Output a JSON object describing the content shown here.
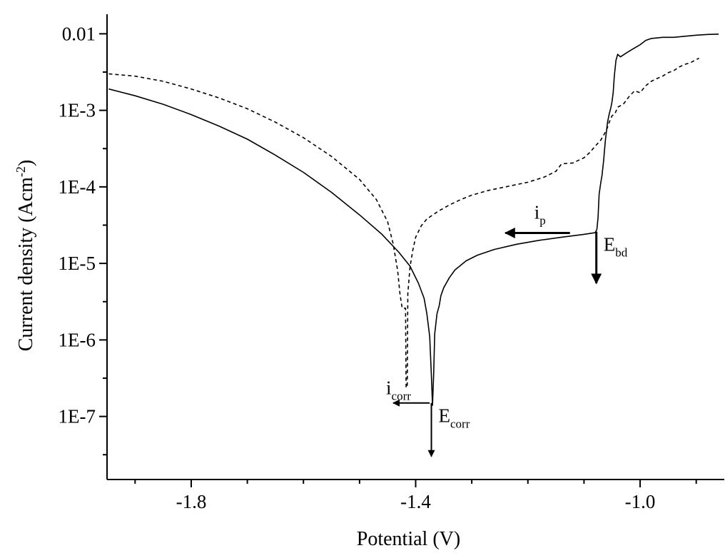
{
  "chart_data": {
    "type": "line",
    "title": "",
    "xlabel": "Potential (V)",
    "ylabel": {
      "main": "Current density (Acm",
      "sup": "-2",
      "close": ")"
    },
    "xlim": [
      -1.95,
      -0.85
    ],
    "ylim": [
      1.5e-08,
      0.018
    ],
    "y_scale": "log",
    "grid": false,
    "x_ticks": [
      {
        "value": -1.8,
        "label": "-1.8"
      },
      {
        "value": -1.4,
        "label": "-1.4"
      },
      {
        "value": -1.0,
        "label": "-1.0"
      }
    ],
    "y_ticks": [
      {
        "value": 1e-07,
        "label": "1E-7"
      },
      {
        "value": 1e-06,
        "label": "1E-6"
      },
      {
        "value": 1e-05,
        "label": "1E-5"
      },
      {
        "value": 0.0001,
        "label": "1E-4"
      },
      {
        "value": 0.001,
        "label": "1E-3"
      },
      {
        "value": 0.01,
        "label": "0.01"
      }
    ],
    "series": [
      {
        "style": "solid",
        "color": "#000000",
        "points": [
          [
            -1.947,
            0.0019
          ],
          [
            -1.9,
            0.00155
          ],
          [
            -1.85,
            0.0012
          ],
          [
            -1.8,
            0.00088
          ],
          [
            -1.75,
            0.00062
          ],
          [
            -1.7,
            0.00042
          ],
          [
            -1.65,
            0.00026
          ],
          [
            -1.6,
            0.000155
          ],
          [
            -1.55,
            8.5e-05
          ],
          [
            -1.5,
            4.3e-05
          ],
          [
            -1.46,
            2.4e-05
          ],
          [
            -1.43,
            1.4e-05
          ],
          [
            -1.41,
            9.2e-06
          ],
          [
            -1.395,
            5.5e-06
          ],
          [
            -1.385,
            3.5e-06
          ],
          [
            -1.38,
            2.2e-06
          ],
          [
            -1.375,
            1.1e-06
          ],
          [
            -1.372,
            3.5e-07
          ],
          [
            -1.37,
            1.4e-07
          ],
          [
            -1.368,
            3.5e-07
          ],
          [
            -1.366,
            1.2e-06
          ],
          [
            -1.362,
            2.2e-06
          ],
          [
            -1.358,
            2.8e-06
          ],
          [
            -1.355,
            3.8e-06
          ],
          [
            -1.35,
            4.8e-06
          ],
          [
            -1.34,
            6.5e-06
          ],
          [
            -1.33,
            8.2e-06
          ],
          [
            -1.31,
            1.08e-05
          ],
          [
            -1.29,
            1.28e-05
          ],
          [
            -1.26,
            1.52e-05
          ],
          [
            -1.22,
            1.78e-05
          ],
          [
            -1.18,
            2e-05
          ],
          [
            -1.14,
            2.2e-05
          ],
          [
            -1.1,
            2.4e-05
          ],
          [
            -1.08,
            2.52e-05
          ],
          [
            -1.077,
            2.8e-05
          ],
          [
            -1.075,
            4e-05
          ],
          [
            -1.073,
            8e-05
          ],
          [
            -1.07,
            0.000115
          ],
          [
            -1.068,
            0.00014
          ],
          [
            -1.065,
            0.00022
          ],
          [
            -1.062,
            0.0004
          ],
          [
            -1.058,
            0.0007
          ],
          [
            -1.055,
            0.0009
          ],
          [
            -1.052,
            0.0011
          ],
          [
            -1.05,
            0.0013
          ],
          [
            -1.048,
            0.0017
          ],
          [
            -1.046,
            0.0028
          ],
          [
            -1.043,
            0.0045
          ],
          [
            -1.04,
            0.0054
          ],
          [
            -1.035,
            0.005
          ],
          [
            -1.025,
            0.0056
          ],
          [
            -1.015,
            0.0062
          ],
          [
            -1.0,
            0.0072
          ],
          [
            -0.99,
            0.0082
          ],
          [
            -0.98,
            0.0087
          ],
          [
            -0.96,
            0.009
          ],
          [
            -0.94,
            0.009
          ],
          [
            -0.92,
            0.0093
          ],
          [
            -0.9,
            0.0096
          ],
          [
            -0.88,
            0.0098
          ],
          [
            -0.86,
            0.0099
          ]
        ]
      },
      {
        "style": "dashed",
        "color": "#000000",
        "points": [
          [
            -1.947,
            0.003
          ],
          [
            -1.9,
            0.0028
          ],
          [
            -1.85,
            0.0024
          ],
          [
            -1.8,
            0.0019
          ],
          [
            -1.75,
            0.00145
          ],
          [
            -1.7,
            0.00105
          ],
          [
            -1.65,
            0.0007
          ],
          [
            -1.6,
            0.00044
          ],
          [
            -1.55,
            0.00025
          ],
          [
            -1.5,
            0.000125
          ],
          [
            -1.47,
            6.8e-05
          ],
          [
            -1.45,
            3.5e-05
          ],
          [
            -1.44,
            1.8e-05
          ],
          [
            -1.432,
            8e-06
          ],
          [
            -1.428,
            4e-06
          ],
          [
            -1.424,
            2.6e-06
          ],
          [
            -1.42,
            2.6e-06
          ],
          [
            -1.418,
            2.6e-06
          ],
          [
            -1.417,
            2.4e-07
          ],
          [
            -1.415,
            2.4e-07
          ],
          [
            -1.414,
            4e-06
          ],
          [
            -1.41,
            9e-06
          ],
          [
            -1.405,
            1.5e-05
          ],
          [
            -1.4,
            2.2e-05
          ],
          [
            -1.39,
            3.1e-05
          ],
          [
            -1.38,
            3.8e-05
          ],
          [
            -1.36,
            4.8e-05
          ],
          [
            -1.34,
            5.8e-05
          ],
          [
            -1.32,
            6.8e-05
          ],
          [
            -1.3,
            7.8e-05
          ],
          [
            -1.27,
            9e-05
          ],
          [
            -1.24,
            0.0001
          ],
          [
            -1.2,
            0.000115
          ],
          [
            -1.17,
            0.000135
          ],
          [
            -1.15,
            0.00016
          ],
          [
            -1.14,
            0.0002
          ],
          [
            -1.12,
            0.000205
          ],
          [
            -1.1,
            0.00024
          ],
          [
            -1.09,
            0.00028
          ],
          [
            -1.08,
            0.00034
          ],
          [
            -1.07,
            0.00041
          ],
          [
            -1.06,
            0.00055
          ],
          [
            -1.055,
            0.0007
          ],
          [
            -1.05,
            0.00085
          ],
          [
            -1.045,
            0.0009
          ],
          [
            -1.04,
            0.0011
          ],
          [
            -1.03,
            0.0012
          ],
          [
            -1.02,
            0.0015
          ],
          [
            -1.01,
            0.0018
          ],
          [
            -1.0,
            0.0017
          ],
          [
            -0.99,
            0.0021
          ],
          [
            -0.98,
            0.0024
          ],
          [
            -0.97,
            0.0026
          ],
          [
            -0.96,
            0.0028
          ],
          [
            -0.95,
            0.0031
          ],
          [
            -0.94,
            0.0033
          ],
          [
            -0.93,
            0.0037
          ],
          [
            -0.92,
            0.004
          ],
          [
            -0.91,
            0.0042
          ],
          [
            -0.9,
            0.0046
          ],
          [
            -0.895,
            0.0048
          ]
        ]
      }
    ],
    "annotations": [
      {
        "id": "ip",
        "main": "i",
        "sub": "p",
        "arrow": "left",
        "x_from": -1.125,
        "x_to": -1.24,
        "y": 2.5e-05
      },
      {
        "id": "ebd",
        "main": "E",
        "sub": "bd",
        "arrow": "down",
        "x": -1.078,
        "y_from": 2.6e-05,
        "y_to": 5.5e-06
      },
      {
        "id": "icorr",
        "main": "i",
        "sub": "corr",
        "arrow": "left",
        "x_from": -1.375,
        "x_to": -1.44,
        "y": 1.5e-07
      },
      {
        "id": "ecorr",
        "main": "E",
        "sub": "corr",
        "arrow": "down",
        "x": -1.372,
        "y_from": 1.5e-07,
        "y_to": 3e-08
      }
    ]
  }
}
